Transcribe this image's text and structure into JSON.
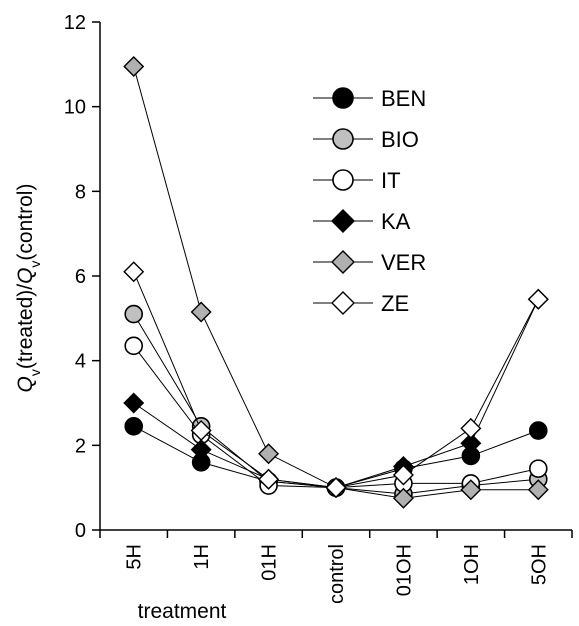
{
  "chart_data": {
    "type": "line",
    "title": "",
    "xlabel": "treatment",
    "ylabel": {
      "q1": "Q",
      "s1": "v",
      "mid": "(treated)/",
      "q2": "Q",
      "s2": "v",
      "end": "(control)"
    },
    "categories": [
      "5H",
      "1H",
      "01H",
      "control",
      "01OH",
      "1OH",
      "5OH"
    ],
    "ylim": [
      0,
      12
    ],
    "yticks": [
      0,
      2,
      4,
      6,
      8,
      10,
      12
    ],
    "grid": false,
    "legend_position": "top-right",
    "series": [
      {
        "name": "BEN",
        "marker": "circle",
        "fill": "#000000",
        "values": [
          2.45,
          1.6,
          1.15,
          1.0,
          1.45,
          1.75,
          2.35
        ]
      },
      {
        "name": "BIO",
        "marker": "circle",
        "fill": "#c0c0c0",
        "values": [
          5.1,
          2.45,
          1.15,
          1.0,
          0.85,
          1.05,
          1.2
        ]
      },
      {
        "name": "IT",
        "marker": "circle",
        "fill": "#ffffff",
        "values": [
          4.35,
          2.25,
          1.05,
          1.0,
          1.1,
          1.1,
          1.45
        ]
      },
      {
        "name": "KA",
        "marker": "diamond",
        "fill": "#000000",
        "values": [
          3.0,
          1.9,
          1.2,
          1.0,
          1.5,
          2.05,
          5.45
        ]
      },
      {
        "name": "VER",
        "marker": "diamond",
        "fill": "#b0b0b0",
        "values": [
          10.95,
          5.15,
          1.8,
          1.0,
          0.75,
          0.95,
          0.95
        ]
      },
      {
        "name": "ZE",
        "marker": "diamond",
        "fill": "#ffffff",
        "values": [
          6.1,
          2.35,
          1.2,
          1.0,
          1.3,
          2.4,
          5.45
        ]
      }
    ]
  }
}
